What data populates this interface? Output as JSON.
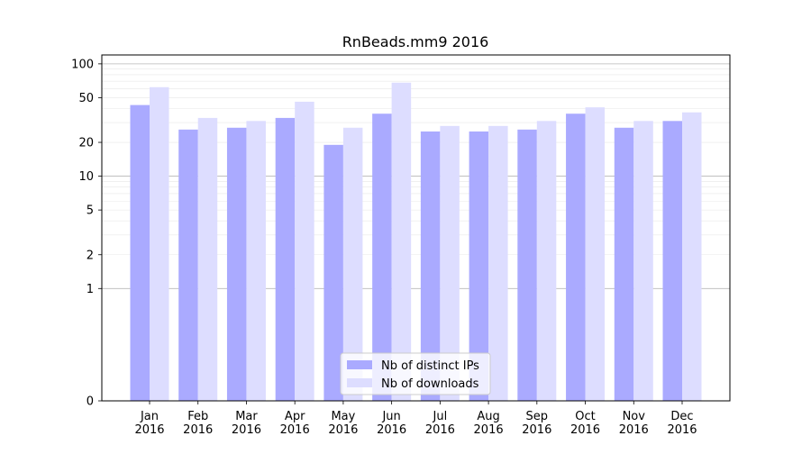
{
  "chart_data": {
    "type": "bar",
    "title": "RnBeads.mm9 2016",
    "xlabel": "",
    "ylabel": "",
    "y_scale": "symlog",
    "yticks": [
      0,
      1,
      2,
      5,
      10,
      20,
      50,
      100
    ],
    "ylim": [
      0,
      120
    ],
    "grid": "horizontal",
    "legend_position": "bottom-center",
    "categories": [
      "Jan\n2016",
      "Feb\n2016",
      "Mar\n2016",
      "Apr\n2016",
      "May\n2016",
      "Jun\n2016",
      "Jul\n2016",
      "Aug\n2016",
      "Sep\n2016",
      "Oct\n2016",
      "Nov\n2016",
      "Dec\n2016"
    ],
    "series": [
      {
        "name": "Nb of distinct IPs",
        "color": "#aaaaff",
        "values": [
          43,
          26,
          27,
          33,
          19,
          36,
          25,
          25,
          26,
          36,
          27,
          31
        ]
      },
      {
        "name": "Nb of downloads",
        "color": "#ddddff",
        "values": [
          62,
          33,
          31,
          46,
          27,
          68,
          28,
          28,
          31,
          41,
          31,
          37
        ]
      }
    ]
  }
}
